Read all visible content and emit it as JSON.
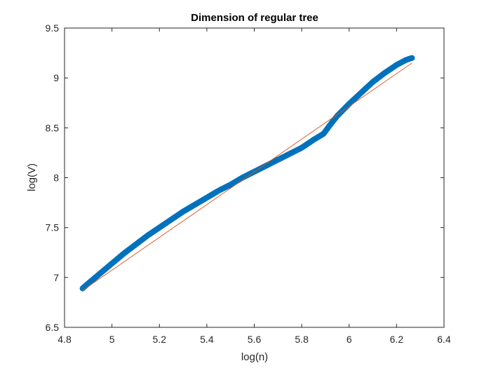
{
  "chart_data": {
    "type": "scatter",
    "title": "Dimension of regular tree",
    "xlabel": "log(n)",
    "ylabel": "log(V)",
    "xlim": [
      4.8,
      6.4
    ],
    "ylim": [
      6.5,
      9.5
    ],
    "xticks": [
      "4.8",
      "5",
      "5.2",
      "5.4",
      "5.6",
      "5.8",
      "6",
      "6.2",
      "6.4"
    ],
    "yticks": [
      "6.5",
      "7",
      "7.5",
      "8",
      "8.5",
      "9",
      "9.5"
    ],
    "grid": false,
    "legend": "none",
    "colors": {
      "markers": "#0072BD",
      "fit_line": "#D95319",
      "axes": "#262626"
    },
    "series": [
      {
        "type": "scatter",
        "marker": "circle-open",
        "x": [
          4.876,
          4.89,
          4.92,
          4.96,
          5.0,
          5.05,
          5.1,
          5.15,
          5.2,
          5.25,
          5.3,
          5.35,
          5.4,
          5.45,
          5.5,
          5.55,
          5.6,
          5.65,
          5.7,
          5.75,
          5.8,
          5.85,
          5.892,
          5.92,
          5.95,
          6.0,
          6.05,
          6.1,
          6.15,
          6.2,
          6.24,
          6.265
        ],
        "y": [
          6.89,
          6.92,
          6.98,
          7.06,
          7.14,
          7.24,
          7.33,
          7.42,
          7.5,
          7.58,
          7.66,
          7.73,
          7.8,
          7.87,
          7.93,
          8.0,
          8.06,
          8.12,
          8.18,
          8.24,
          8.3,
          8.38,
          8.44,
          8.53,
          8.62,
          8.74,
          8.85,
          8.96,
          9.05,
          9.13,
          9.18,
          9.2
        ]
      },
      {
        "type": "line",
        "x": [
          4.876,
          6.265
        ],
        "y": [
          6.87,
          9.15
        ]
      }
    ]
  }
}
